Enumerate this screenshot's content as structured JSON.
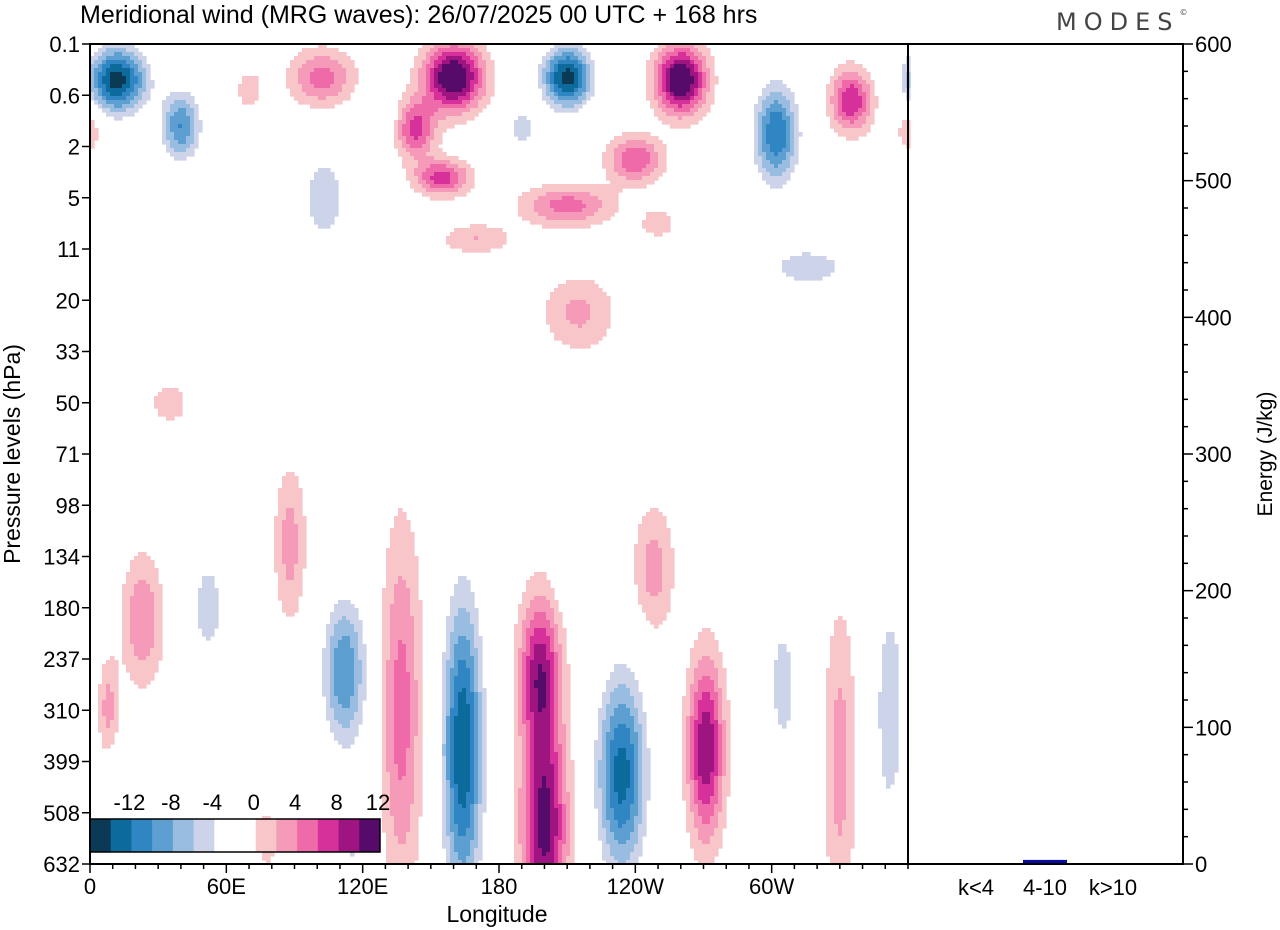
{
  "logo": {
    "text": "MODES"
  },
  "chart_data": [
    {
      "type": "heatmap",
      "title": "Meridional wind (MRG waves):  26/07/2025  00 UTC  + 168 hrs",
      "xlabel": "Longitude",
      "ylabel": "Pressure levels (hPa)",
      "x_ticks": [
        "0",
        "60E",
        "120E",
        "180",
        "120W",
        "60W"
      ],
      "x_tick_degrees": [
        0,
        60,
        120,
        180,
        240,
        300
      ],
      "xlim": [
        0,
        360
      ],
      "y_ticks": [
        "0.1",
        "0.6",
        "2",
        "5",
        "11",
        "20",
        "33",
        "50",
        "71",
        "98",
        "134",
        "180",
        "237",
        "310",
        "399",
        "508",
        "632"
      ],
      "colorbar": {
        "labels": [
          "-12",
          "-8",
          "-4",
          "0",
          "4",
          "8",
          "12"
        ],
        "levels": [
          -14,
          -12,
          -10,
          -8,
          -6,
          -4,
          -2,
          2,
          4,
          6,
          8,
          10,
          12,
          14
        ],
        "colors": [
          "#0a3a55",
          "#0d6a9c",
          "#2f86c2",
          "#5d9fd0",
          "#98bde0",
          "#cdd3e8",
          "#ffffff",
          "#ffffff",
          "#f8c5c8",
          "#f59ab8",
          "#ee6aa8",
          "#d6309a",
          "#9e1480",
          "#560b6a"
        ]
      },
      "features": [
        {
          "lon": 12,
          "lev": 1.4,
          "dlon": 13,
          "dlev": 1.3,
          "amp": -15
        },
        {
          "lon": 40,
          "lev": 3.2,
          "dlon": 9,
          "dlev": 1.4,
          "amp": -10
        },
        {
          "lon": 0,
          "lev": 3.3,
          "dlon": 5,
          "dlev": 0.9,
          "amp": 4
        },
        {
          "lon": 70,
          "lev": 1.8,
          "dlon": 6,
          "dlev": 0.8,
          "amp": 3.5
        },
        {
          "lon": 102,
          "lev": 1.3,
          "dlon": 14,
          "dlev": 1.1,
          "amp": 7
        },
        {
          "lon": 160,
          "lev": 1.3,
          "dlon": 13,
          "dlev": 1.3,
          "amp": 15
        },
        {
          "lon": 143,
          "lev": 3.3,
          "dlon": 9,
          "dlev": 1.1,
          "amp": 9
        },
        {
          "lon": 155,
          "lev": 5.2,
          "dlon": 12,
          "dlev": 0.7,
          "amp": 9
        },
        {
          "lon": 128,
          "lev": 3.0,
          "dlon": 8,
          "dlev": 0.8,
          "amp": -3
        },
        {
          "lon": 103,
          "lev": 6.0,
          "dlon": 11,
          "dlev": 1.8,
          "amp": -6
        },
        {
          "lon": 210,
          "lev": 1.3,
          "dlon": 11,
          "dlev": 1.2,
          "amp": -15
        },
        {
          "lon": 190,
          "lev": 3.3,
          "dlon": 8,
          "dlev": 0.9,
          "amp": -5
        },
        {
          "lon": 260,
          "lev": 1.4,
          "dlon": 11,
          "dlev": 1.3,
          "amp": 15
        },
        {
          "lon": 240,
          "lev": 4.5,
          "dlon": 12,
          "dlev": 0.9,
          "amp": 8
        },
        {
          "lon": 210,
          "lev": 6.3,
          "dlon": 20,
          "dlev": 0.8,
          "amp": 7
        },
        {
          "lon": 170,
          "lev": 7.6,
          "dlon": 16,
          "dlev": 0.6,
          "amp": 4
        },
        {
          "lon": 250,
          "lev": 7.0,
          "dlon": 8,
          "dlev": 0.6,
          "amp": 3.5
        },
        {
          "lon": 302,
          "lev": 3.5,
          "dlon": 10,
          "dlev": 2.0,
          "amp": -12
        },
        {
          "lon": 335,
          "lev": 2.2,
          "dlon": 9,
          "dlev": 1.2,
          "amp": 10
        },
        {
          "lon": 316,
          "lev": 8.7,
          "dlon": 18,
          "dlev": 0.8,
          "amp": -6
        },
        {
          "lon": 215,
          "lev": 10.5,
          "dlon": 16,
          "dlev": 1.5,
          "amp": 4.5
        },
        {
          "lon": 35,
          "lev": 14,
          "dlon": 10,
          "dlev": 1.0,
          "amp": 3
        },
        {
          "lon": 23,
          "lev": 22.5,
          "dlon": 9,
          "dlev": 2.5,
          "amp": 6
        },
        {
          "lon": 8,
          "lev": 26,
          "dlon": 5,
          "dlev": 2.0,
          "amp": 5
        },
        {
          "lon": 52,
          "lev": 22,
          "dlon": 7,
          "dlev": 2.0,
          "amp": -6
        },
        {
          "lon": 88,
          "lev": 19.5,
          "dlon": 7,
          "dlev": 3.0,
          "amp": 5
        },
        {
          "lon": 112,
          "lev": 24.5,
          "dlon": 10,
          "dlev": 3.0,
          "amp": -10
        },
        {
          "lon": 137,
          "lev": 26,
          "dlon": 9,
          "dlev": 7.0,
          "amp": 7
        },
        {
          "lon": 164,
          "lev": 27.5,
          "dlon": 9,
          "dlev": 6.0,
          "amp": -14
        },
        {
          "lon": 198,
          "lev": 24.5,
          "dlon": 9,
          "dlev": 3.0,
          "amp": 11
        },
        {
          "lon": 200,
          "lev": 30.5,
          "dlon": 10,
          "dlev": 4.0,
          "amp": 13
        },
        {
          "lon": 234,
          "lev": 28.5,
          "dlon": 11,
          "dlev": 4.0,
          "amp": -13
        },
        {
          "lon": 215,
          "lev": 20.5,
          "dlon": 8,
          "dlev": 1.5,
          "amp": -4
        },
        {
          "lon": 248,
          "lev": 20.5,
          "dlon": 9,
          "dlev": 2.5,
          "amp": 5
        },
        {
          "lon": 271,
          "lev": 27.5,
          "dlon": 8,
          "dlev": 3.5,
          "amp": 12
        },
        {
          "lon": 305,
          "lev": 25,
          "dlon": 8,
          "dlev": 3.5,
          "amp": -5
        },
        {
          "lon": 330,
          "lev": 28,
          "dlon": 7,
          "dlev": 6.0,
          "amp": 5
        },
        {
          "lon": 352,
          "lev": 26,
          "dlon": 7,
          "dlev": 5.0,
          "amp": -6
        },
        {
          "lon": 15,
          "lev": 30.5,
          "dlon": 9,
          "dlev": 3.0,
          "amp": -4
        },
        {
          "lon": 115,
          "lev": 31.5,
          "dlon": 8,
          "dlev": 2.5,
          "amp": -4
        },
        {
          "lon": 78,
          "lev": 31,
          "dlon": 5,
          "dlev": 1.5,
          "amp": 3
        },
        {
          "lon": 310,
          "lev": 31,
          "dlon": 5,
          "dlev": 1.5,
          "amp": -3
        },
        {
          "lon": 352,
          "lev": 31.5,
          "dlon": 6,
          "dlev": 1.5,
          "amp": 3
        }
      ]
    },
    {
      "type": "bar",
      "ylabel": "Energy (J/kg)",
      "categories": [
        "k<4",
        "4-10",
        "k>10"
      ],
      "values": [
        0,
        3,
        0
      ],
      "ylim": [
        0,
        600
      ],
      "y_ticks": [
        "0",
        "100",
        "200",
        "300",
        "400",
        "500",
        "600"
      ],
      "bar_color": "#0b0ba0"
    }
  ]
}
